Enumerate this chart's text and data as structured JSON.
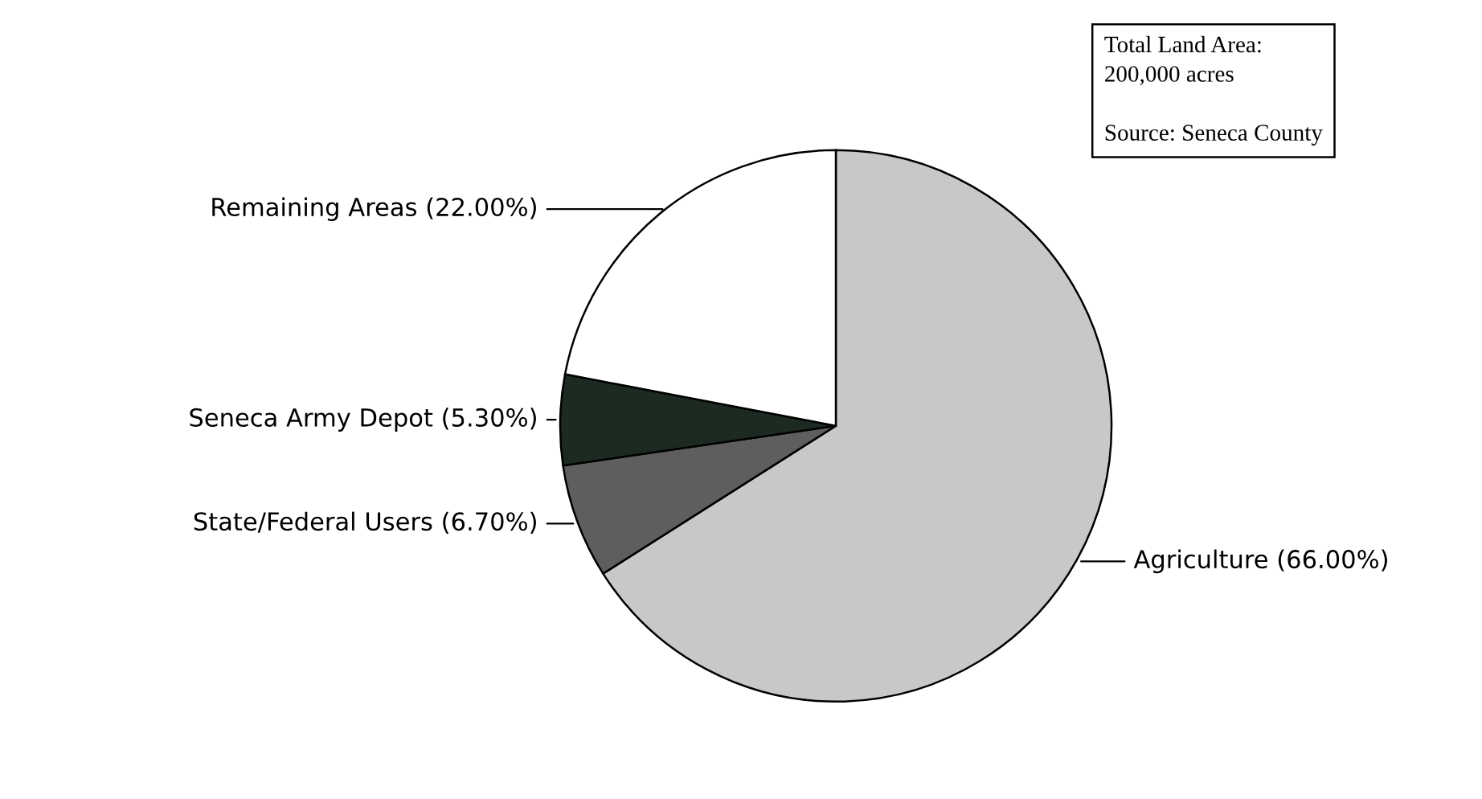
{
  "chart_data": {
    "type": "pie",
    "categories": [
      "Agriculture",
      "State/Federal Users",
      "Seneca Army Depot",
      "Remaining Areas"
    ],
    "values": [
      66.0,
      6.7,
      5.3,
      22.0
    ],
    "colors": [
      "#c8c8c8",
      "#5e5e5e",
      "#1c2a22",
      "#ffffff"
    ],
    "value_labels": [
      "(66.00%)",
      "(6.70%)",
      "(5.30%)",
      "(22.00%)"
    ],
    "annotations": [
      "Total Land Area:\n200,000 acres",
      "Source: Seneca County"
    ]
  }
}
